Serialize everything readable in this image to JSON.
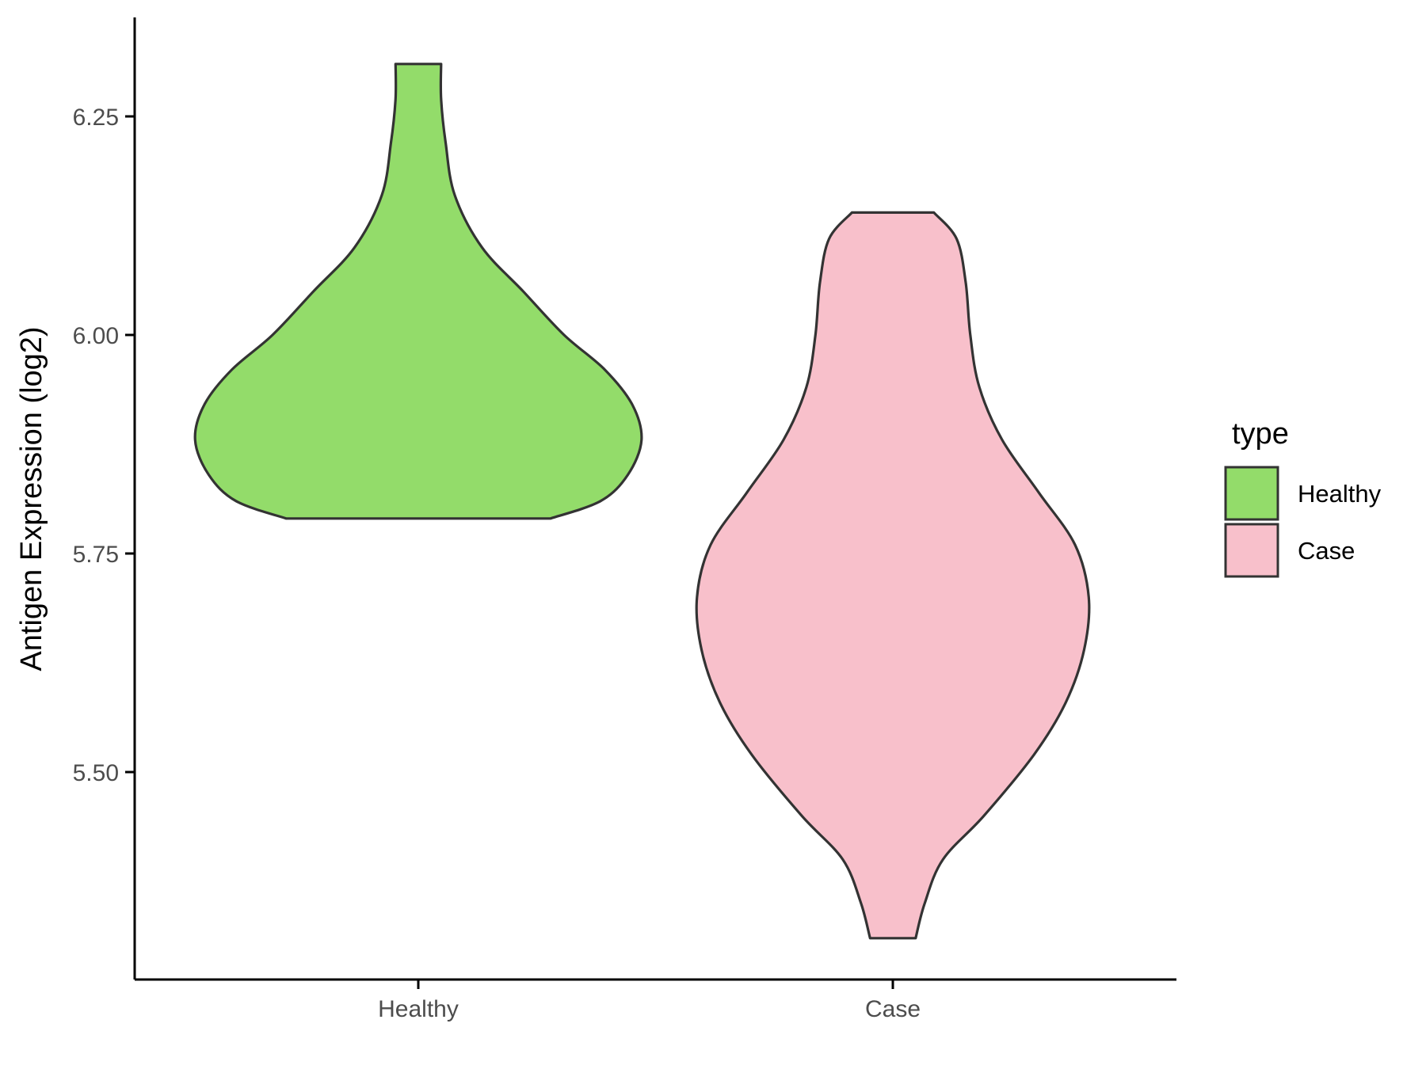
{
  "chart_data": {
    "type": "violin",
    "ylabel": "Antigen Expression (log2)",
    "xlabel": "",
    "ylim": [
      5.26,
      6.35
    ],
    "yticks": [
      5.5,
      5.75,
      6.0,
      6.25
    ],
    "ytick_labels": [
      "5.50",
      "5.75",
      "6.00",
      "6.25"
    ],
    "categories": [
      "Healthy",
      "Case"
    ],
    "grid": false,
    "legend": {
      "title": "type",
      "placement": "right",
      "entries": [
        {
          "label": "Healthy",
          "color": "#93dc6a"
        },
        {
          "label": "Case",
          "color": "#f8c0cb"
        }
      ]
    },
    "series": [
      {
        "category": "Healthy",
        "color": "#93dc6a",
        "min": 5.79,
        "max": 6.31,
        "density_profile": [
          [
            5.79,
            0.29
          ],
          [
            5.81,
            0.4
          ],
          [
            5.84,
            0.46
          ],
          [
            5.88,
            0.49
          ],
          [
            5.92,
            0.47
          ],
          [
            5.96,
            0.41
          ],
          [
            6.0,
            0.32
          ],
          [
            6.05,
            0.23
          ],
          [
            6.1,
            0.14
          ],
          [
            6.16,
            0.08
          ],
          [
            6.22,
            0.06
          ],
          [
            6.27,
            0.05
          ],
          [
            6.31,
            0.05
          ]
        ]
      },
      {
        "category": "Case",
        "color": "#f8c0cb",
        "min": 5.31,
        "max": 6.14,
        "density_profile": [
          [
            5.31,
            0.05
          ],
          [
            5.35,
            0.07
          ],
          [
            5.4,
            0.11
          ],
          [
            5.45,
            0.2
          ],
          [
            5.52,
            0.31
          ],
          [
            5.58,
            0.38
          ],
          [
            5.64,
            0.42
          ],
          [
            5.7,
            0.43
          ],
          [
            5.76,
            0.4
          ],
          [
            5.82,
            0.32
          ],
          [
            5.88,
            0.24
          ],
          [
            5.94,
            0.19
          ],
          [
            6.0,
            0.17
          ],
          [
            6.06,
            0.16
          ],
          [
            6.11,
            0.14
          ],
          [
            6.14,
            0.09
          ]
        ]
      }
    ]
  }
}
